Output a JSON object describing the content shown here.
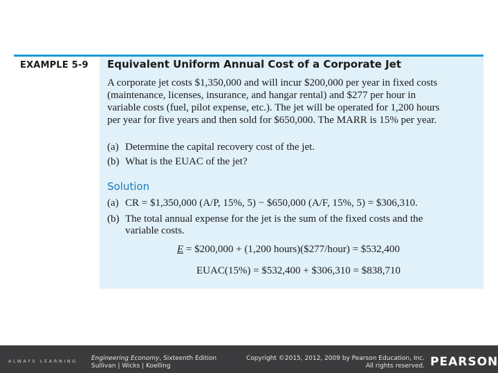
{
  "example": {
    "label": "EXAMPLE 5-9",
    "title": "Equivalent Uniform Annual Cost of a Corporate Jet",
    "paragraph_lines": [
      "A corporate jet costs $1,350,000 and will incur $200,000 per year in fixed costs",
      "(maintenance, licenses, insurance, and hangar rental) and $277 per hour in",
      "variable costs (fuel, pilot expense, etc.). The jet will be operated for 1,200 hours",
      "per year for five years and then sold for $650,000. The MARR is 15% per year."
    ],
    "questions": [
      {
        "marker": "(a)",
        "text": "Determine the capital recovery cost of the jet."
      },
      {
        "marker": "(b)",
        "text": "What is the EUAC of the jet?"
      }
    ]
  },
  "solution": {
    "heading": "Solution",
    "a_marker": "(a)",
    "a_text": "CR = $1,350,000 (A/P, 15%, 5) − $650,000 (A/F, 15%, 5) = $306,310.",
    "b_marker": "(b)",
    "b_line1": "The total annual expense for the jet is the sum of the fixed costs and the",
    "b_line2": "variable costs.",
    "eq1_var": "E",
    "eq1_rest": " = $200,000 + (1,200 hours)($277/hour) = $532,400",
    "eq2": "EUAC(15%) = $532,400 + $306,310 = $838,710"
  },
  "footer": {
    "brand": "ALWAYS LEARNING",
    "book_title": "Engineering Economy",
    "book_edition": ", Sixteenth Edition",
    "authors": "Sullivan | Wicks | Koelling",
    "copyright_line1": "Copyright ©2015, 2012, 2009 by Pearson Education, Inc.",
    "copyright_line2": "All rights reserved.",
    "logo": "PEARSON"
  }
}
